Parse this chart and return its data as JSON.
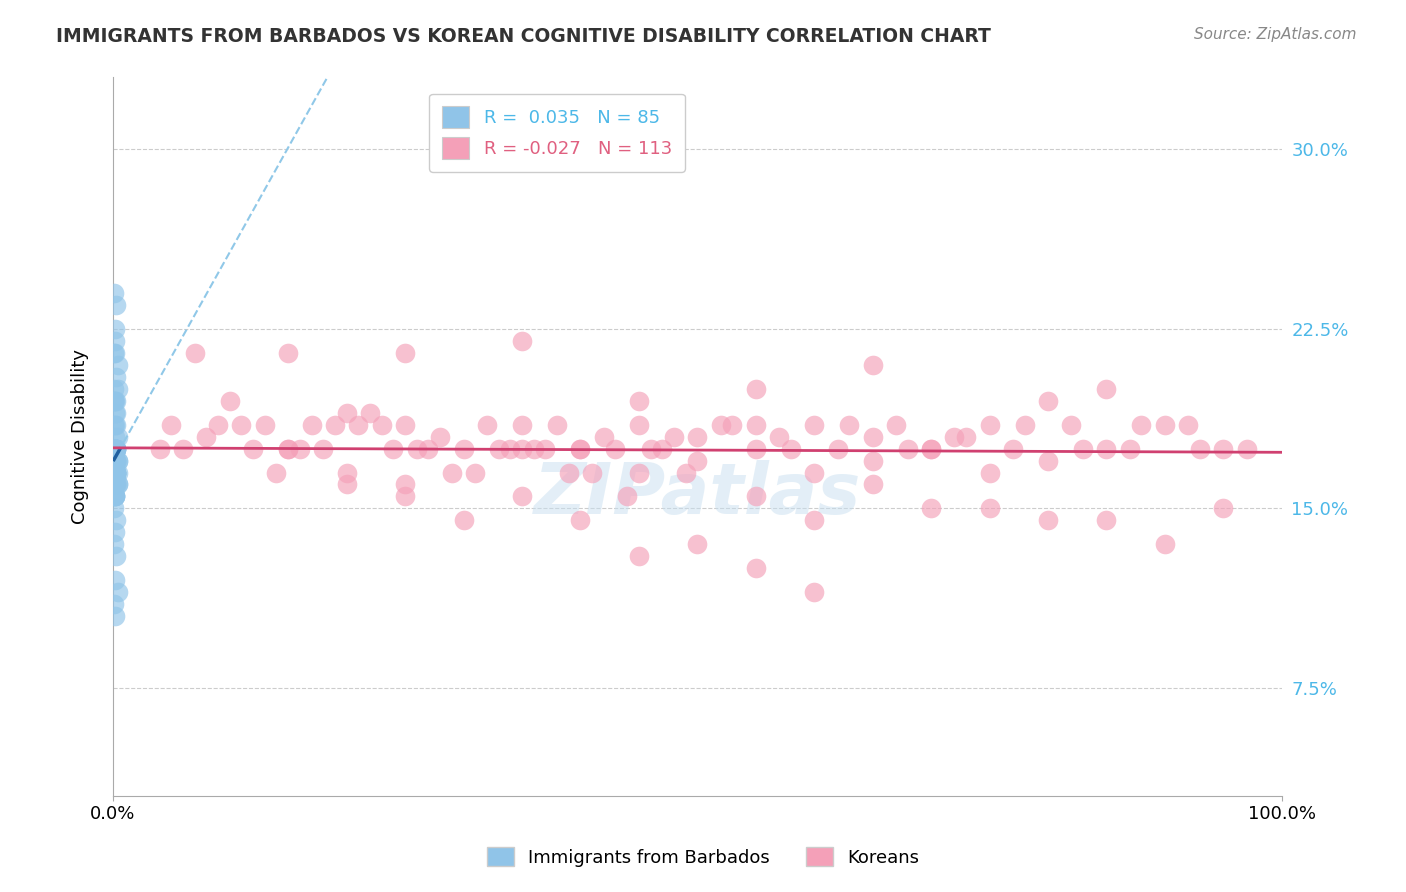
{
  "title": "IMMIGRANTS FROM BARBADOS VS KOREAN COGNITIVE DISABILITY CORRELATION CHART",
  "source": "Source: ZipAtlas.com",
  "ylabel": "Cognitive Disability",
  "xlim": [
    0,
    1.0
  ],
  "ylim": [
    0.03,
    0.33
  ],
  "yticks": [
    0.075,
    0.15,
    0.225,
    0.3
  ],
  "ytick_labels": [
    "7.5%",
    "15.0%",
    "22.5%",
    "30.0%"
  ],
  "xtick_labels": [
    "0.0%",
    "100.0%"
  ],
  "blue_color": "#90c4e8",
  "pink_color": "#f4a0b8",
  "blue_line_color": "#2060a0",
  "pink_line_color": "#d04070",
  "blue_dash_color": "#90c8e8",
  "watermark": "ZIPatlas",
  "blue_x": [
    0.002,
    0.003,
    0.001,
    0.002,
    0.004,
    0.001,
    0.002,
    0.003,
    0.001,
    0.002,
    0.003,
    0.002,
    0.001,
    0.003,
    0.002,
    0.001,
    0.002,
    0.003,
    0.004,
    0.002,
    0.001,
    0.003,
    0.002,
    0.001,
    0.004,
    0.002,
    0.003,
    0.001,
    0.002,
    0.003,
    0.002,
    0.001,
    0.003,
    0.002,
    0.004,
    0.001,
    0.002,
    0.003,
    0.002,
    0.001,
    0.003,
    0.002,
    0.001,
    0.004,
    0.002,
    0.003,
    0.001,
    0.002,
    0.003,
    0.002,
    0.001,
    0.003,
    0.002,
    0.001,
    0.004,
    0.002,
    0.003,
    0.002,
    0.001,
    0.003,
    0.002,
    0.001,
    0.003,
    0.002,
    0.004,
    0.001,
    0.002,
    0.003,
    0.002,
    0.001,
    0.003,
    0.002,
    0.001,
    0.003,
    0.002,
    0.004,
    0.001,
    0.002,
    0.003,
    0.002,
    0.001,
    0.003,
    0.002,
    0.004,
    0.003
  ],
  "blue_y": [
    0.225,
    0.235,
    0.215,
    0.22,
    0.21,
    0.24,
    0.195,
    0.205,
    0.2,
    0.215,
    0.19,
    0.185,
    0.195,
    0.175,
    0.18,
    0.185,
    0.175,
    0.17,
    0.18,
    0.17,
    0.165,
    0.175,
    0.17,
    0.165,
    0.16,
    0.175,
    0.165,
    0.175,
    0.165,
    0.17,
    0.16,
    0.17,
    0.175,
    0.165,
    0.17,
    0.175,
    0.165,
    0.16,
    0.175,
    0.165,
    0.17,
    0.165,
    0.175,
    0.165,
    0.17,
    0.165,
    0.17,
    0.175,
    0.165,
    0.17,
    0.16,
    0.175,
    0.17,
    0.165,
    0.17,
    0.16,
    0.165,
    0.175,
    0.16,
    0.165,
    0.155,
    0.16,
    0.165,
    0.155,
    0.16,
    0.165,
    0.155,
    0.16,
    0.155,
    0.15,
    0.145,
    0.14,
    0.135,
    0.13,
    0.12,
    0.115,
    0.11,
    0.105,
    0.185,
    0.19,
    0.195,
    0.175,
    0.17,
    0.2,
    0.195
  ],
  "pink_x": [
    0.05,
    0.1,
    0.15,
    0.2,
    0.25,
    0.3,
    0.35,
    0.4,
    0.45,
    0.5,
    0.55,
    0.6,
    0.65,
    0.7,
    0.75,
    0.8,
    0.85,
    0.9,
    0.95,
    0.07,
    0.12,
    0.17,
    0.22,
    0.27,
    0.32,
    0.37,
    0.42,
    0.47,
    0.52,
    0.57,
    0.62,
    0.67,
    0.72,
    0.77,
    0.82,
    0.87,
    0.92,
    0.97,
    0.08,
    0.13,
    0.18,
    0.23,
    0.28,
    0.33,
    0.38,
    0.43,
    0.48,
    0.53,
    0.58,
    0.63,
    0.68,
    0.73,
    0.78,
    0.83,
    0.88,
    0.93,
    0.06,
    0.11,
    0.16,
    0.21,
    0.26,
    0.31,
    0.36,
    0.41,
    0.46,
    0.04,
    0.09,
    0.14,
    0.19,
    0.24,
    0.29,
    0.34,
    0.39,
    0.44,
    0.49,
    0.2,
    0.25,
    0.3,
    0.35,
    0.4,
    0.5,
    0.6,
    0.7,
    0.8,
    0.9,
    0.15,
    0.2,
    0.25,
    0.35,
    0.45,
    0.55,
    0.65,
    0.75,
    0.85,
    0.45,
    0.55,
    0.65,
    0.75,
    0.4,
    0.5,
    0.6,
    0.7,
    0.8,
    0.15,
    0.25,
    0.35,
    0.6,
    0.45,
    0.55,
    0.55,
    0.65,
    0.85,
    0.95
  ],
  "pink_y": [
    0.185,
    0.195,
    0.175,
    0.19,
    0.185,
    0.175,
    0.22,
    0.175,
    0.185,
    0.18,
    0.175,
    0.185,
    0.18,
    0.175,
    0.185,
    0.195,
    0.175,
    0.185,
    0.175,
    0.215,
    0.175,
    0.185,
    0.19,
    0.175,
    0.185,
    0.175,
    0.18,
    0.175,
    0.185,
    0.18,
    0.175,
    0.185,
    0.18,
    0.175,
    0.185,
    0.175,
    0.185,
    0.175,
    0.18,
    0.185,
    0.175,
    0.185,
    0.18,
    0.175,
    0.185,
    0.175,
    0.18,
    0.185,
    0.175,
    0.185,
    0.175,
    0.18,
    0.185,
    0.175,
    0.185,
    0.175,
    0.175,
    0.185,
    0.175,
    0.185,
    0.175,
    0.165,
    0.175,
    0.165,
    0.175,
    0.175,
    0.185,
    0.165,
    0.185,
    0.175,
    0.165,
    0.175,
    0.165,
    0.155,
    0.165,
    0.16,
    0.155,
    0.145,
    0.155,
    0.145,
    0.135,
    0.145,
    0.15,
    0.145,
    0.135,
    0.175,
    0.165,
    0.16,
    0.175,
    0.165,
    0.155,
    0.16,
    0.15,
    0.145,
    0.195,
    0.185,
    0.17,
    0.165,
    0.175,
    0.17,
    0.165,
    0.175,
    0.17,
    0.215,
    0.215,
    0.185,
    0.115,
    0.13,
    0.125,
    0.2,
    0.21,
    0.2,
    0.15
  ]
}
